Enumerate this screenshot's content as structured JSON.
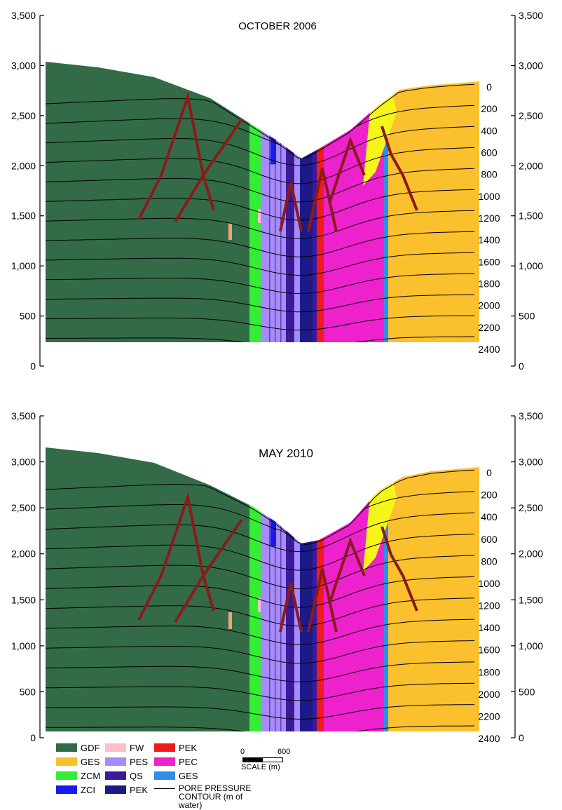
{
  "panels": [
    {
      "id": "p1",
      "title": "OCTOBER 2006",
      "left_ticks": [
        "3,500",
        "3,000",
        "2,500",
        "2,000",
        "1,500",
        "1,000",
        "500",
        "0"
      ],
      "right_ticks": [
        "3,500",
        "3,000",
        "2,500",
        "2,000",
        "1,500",
        "1,000",
        "500",
        "0"
      ],
      "contour_labels": [
        "0",
        "200",
        "400",
        "600",
        "800",
        "1000",
        "1200",
        "1400",
        "1600",
        "1800",
        "2000",
        "2200",
        "2400"
      ]
    },
    {
      "id": "p2",
      "title": "MAY 2010",
      "left_ticks": [
        "3,500",
        "3,000",
        "2,500",
        "2,000",
        "1,500",
        "1,000",
        "500",
        "0"
      ],
      "right_ticks": [
        "3,500",
        "3,000",
        "2,500",
        "2,000",
        "1,500",
        "1,000",
        "500",
        "0"
      ],
      "contour_labels": [
        "0",
        "200",
        "400",
        "600",
        "800",
        "1000",
        "1200",
        "1400",
        "1600",
        "1800",
        "2000",
        "2200",
        "2400"
      ]
    }
  ],
  "legend": {
    "items": [
      {
        "label": "GDF",
        "color": "#336b47"
      },
      {
        "label": "GES",
        "color": "#fbc02d"
      },
      {
        "label": "ZCM",
        "color": "#33ee33"
      },
      {
        "label": "ZCI",
        "color": "#1a1aee"
      },
      {
        "label": "FW",
        "color": "#ffc0cb"
      },
      {
        "label": "PES",
        "color": "#a78bfa"
      },
      {
        "label": "QS",
        "color": "#3b1a9e"
      },
      {
        "label": "PEK",
        "color": "#1a1a8a"
      },
      {
        "label": "PEK",
        "color": "#ee1c1c"
      },
      {
        "label": "PEC",
        "color": "#ee22cc"
      },
      {
        "label": "GES",
        "color": "#2f8fe8"
      }
    ],
    "contour_label": "PORE PRESSURE CONTOUR (m of water)"
  },
  "scale": {
    "start": "0",
    "end": "600",
    "caption": "SCALE (m)"
  },
  "colors": {
    "GDF": "#336b47",
    "GES": "#fbc02d",
    "ZCM": "#33ee33",
    "ZCI": "#1a1aee",
    "FW": "#ffc0cb",
    "PES": "#a78bfa",
    "QS": "#3b1a9e",
    "PEK_dark": "#1a1a8a",
    "PEK_red": "#ee1c1c",
    "PEC": "#ee22cc",
    "GES_blue": "#2f8fe8",
    "failure": "#8b1a1a",
    "yellow": "#f5f51a",
    "salmon": "#f4a07a"
  }
}
